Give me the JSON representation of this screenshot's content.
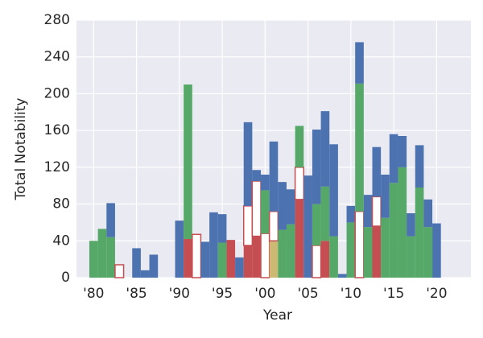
{
  "chart_data": {
    "type": "stacked-histogram",
    "xlabel": "Year",
    "ylabel": "Total Notability",
    "x": [
      1980,
      1981,
      1982,
      1983,
      1984,
      1985,
      1986,
      1987,
      1988,
      1989,
      1990,
      1991,
      1992,
      1993,
      1994,
      1995,
      1996,
      1997,
      1998,
      1999,
      2000,
      2001,
      2002,
      2003,
      2004,
      2005,
      2006,
      2007,
      2008,
      2009,
      2010,
      2011,
      2012,
      2013,
      2014,
      2015,
      2016,
      2017,
      2018,
      2019,
      2020
    ],
    "series": [
      {
        "color": "#c44e52",
        "values": [
          0,
          0,
          0,
          0,
          0,
          0,
          0,
          0,
          0,
          0,
          0,
          42,
          0,
          0,
          0,
          0,
          41,
          0,
          35,
          45,
          0,
          0,
          0,
          0,
          85,
          0,
          0,
          40,
          0,
          0,
          0,
          0,
          0,
          56,
          0,
          0,
          0,
          0,
          0,
          0,
          0
        ]
      },
      {
        "color": "#ccb974",
        "values": [
          0,
          0,
          0,
          0,
          0,
          0,
          0,
          0,
          0,
          0,
          0,
          0,
          0,
          0,
          0,
          0,
          0,
          0,
          0,
          0,
          0,
          40,
          0,
          0,
          0,
          0,
          0,
          0,
          0,
          0,
          0,
          0,
          0,
          0,
          0,
          0,
          0,
          0,
          0,
          0,
          0
        ]
      },
      {
        "color": "#ffffff",
        "values": [
          0,
          0,
          0,
          14,
          0,
          0,
          0,
          0,
          0,
          0,
          0,
          0,
          47,
          0,
          0,
          0,
          0,
          0,
          43,
          60,
          48,
          32,
          0,
          0,
          35,
          0,
          35,
          0,
          0,
          0,
          0,
          72,
          0,
          32,
          0,
          0,
          0,
          0,
          0,
          0,
          0
        ]
      },
      {
        "color": "#55a868",
        "values": [
          40,
          53,
          44,
          0,
          0,
          0,
          0,
          0,
          0,
          0,
          0,
          168,
          0,
          0,
          0,
          38,
          0,
          0,
          0,
          0,
          47,
          0,
          52,
          58,
          45,
          0,
          45,
          59,
          45,
          0,
          60,
          139,
          55,
          0,
          65,
          103,
          120,
          45,
          98,
          55,
          0
        ]
      },
      {
        "color": "#4c72b0",
        "values": [
          0,
          0,
          37,
          0,
          0,
          32,
          8,
          25,
          0,
          0,
          62,
          0,
          0,
          39,
          71,
          31,
          0,
          22,
          91,
          12,
          17,
          76,
          52,
          38,
          0,
          111,
          81,
          82,
          100,
          4,
          18,
          45,
          35,
          54,
          47,
          53,
          34,
          25,
          46,
          30,
          59
        ]
      }
    ],
    "edgecolor": "#c44e52",
    "xlim": [
      1978,
      2024
    ],
    "xticks": [
      {
        "value": 1980,
        "label": "'80"
      },
      {
        "value": 1985,
        "label": "'85"
      },
      {
        "value": 1990,
        "label": "'90"
      },
      {
        "value": 1995,
        "label": "'95"
      },
      {
        "value": 2000,
        "label": "'00"
      },
      {
        "value": 2005,
        "label": "'05"
      },
      {
        "value": 2010,
        "label": "'10"
      },
      {
        "value": 2015,
        "label": "'15"
      },
      {
        "value": 2020,
        "label": "'20"
      }
    ],
    "ylim": [
      0,
      280
    ],
    "yticks": [
      0,
      40,
      80,
      120,
      160,
      200,
      240,
      280
    ],
    "grid": true
  }
}
